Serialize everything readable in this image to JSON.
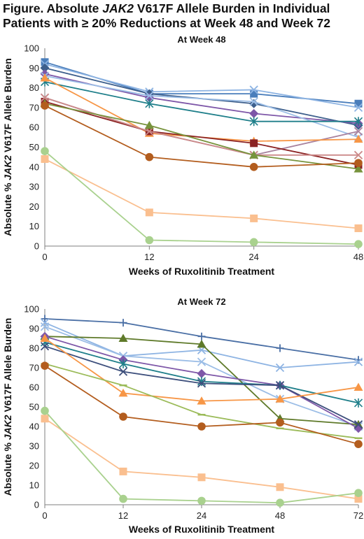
{
  "figure": {
    "title_prefix": "Figure. Absolute ",
    "title_gene": "JAK2",
    "title_rest": " V617F Allele Burden in Individual",
    "title_line2": "Patients with ≥ 20% Reductions at Week 48 and Week 72"
  },
  "chart_data": [
    {
      "type": "line",
      "title": "At Week 48",
      "xlabel": "Weeks of Ruxolitinib Treatment",
      "ylabel_prefix": "Absolute % ",
      "ylabel_gene": "JAK2",
      "ylabel_rest": " V617F Allele Burden",
      "x": [
        0,
        12,
        24,
        48
      ],
      "x_tick_labels": [
        "0",
        "12",
        "24",
        "48"
      ],
      "ylim": [
        0,
        100
      ],
      "y_ticks": [
        0,
        10,
        20,
        30,
        40,
        50,
        60,
        70,
        80,
        90,
        100
      ],
      "grid": false,
      "series": [
        {
          "color": "#4a7ebb",
          "marker": "square",
          "values": [
            93,
            77,
            77,
            72
          ]
        },
        {
          "color": "#8eb4e3",
          "marker": "x",
          "values": [
            92,
            78,
            79,
            70
          ]
        },
        {
          "color": "#3d5f8c",
          "marker": "diamond",
          "values": [
            90,
            77,
            72,
            61
          ]
        },
        {
          "color": "#7e57a8",
          "marker": "diamond",
          "values": [
            87,
            75,
            67,
            62
          ]
        },
        {
          "color": "#9bbde6",
          "marker": "x",
          "values": [
            86,
            76,
            73,
            55
          ]
        },
        {
          "color": "#1f7f8a",
          "marker": "star",
          "values": [
            83,
            72,
            63,
            63
          ]
        },
        {
          "color": "#a8829e",
          "marker": "x",
          "values": [
            75,
            58,
            46,
            58
          ]
        },
        {
          "color": "#f79646",
          "marker": "triangle",
          "values": [
            85,
            57,
            53,
            54
          ]
        },
        {
          "color": "#8b2323",
          "marker": "square",
          "values": [
            73,
            58,
            52,
            41
          ]
        },
        {
          "color": "#cc8a8a",
          "marker": "x",
          "values": [
            75,
            58,
            46,
            46
          ]
        },
        {
          "color": "#77933c",
          "marker": "triangle",
          "values": [
            72,
            61,
            46,
            39
          ]
        },
        {
          "color": "#b35d1e",
          "marker": "circle",
          "values": [
            71,
            45,
            40,
            42
          ]
        },
        {
          "color": "#fabf8f",
          "marker": "square",
          "values": [
            44,
            17,
            14,
            9
          ]
        },
        {
          "color": "#a9d18e",
          "marker": "circle",
          "values": [
            48,
            3,
            2,
            1
          ]
        }
      ]
    },
    {
      "type": "line",
      "title": "At Week 72",
      "xlabel": "Weeks of Ruxolitinib Treatment",
      "ylabel_prefix": "Absolute % ",
      "ylabel_gene": "JAK2",
      "ylabel_rest": " V617F Allele Burden",
      "x": [
        0,
        12,
        24,
        48,
        72
      ],
      "x_tick_labels": [
        "0",
        "12",
        "24",
        "48",
        "72"
      ],
      "ylim": [
        0,
        100
      ],
      "y_ticks": [
        0,
        10,
        20,
        30,
        40,
        50,
        60,
        70,
        80,
        90,
        100
      ],
      "grid": false,
      "series": [
        {
          "color": "#4a6fa5",
          "marker": "plus",
          "values": [
            95,
            93,
            86,
            80,
            74
          ]
        },
        {
          "color": "#8eb4e3",
          "marker": "x",
          "values": [
            93,
            76,
            79,
            70,
            73
          ]
        },
        {
          "color": "#9bbde6",
          "marker": "x",
          "values": [
            91,
            76,
            73,
            54,
            40
          ]
        },
        {
          "color": "#5f7a2a",
          "marker": "triangle",
          "values": [
            86,
            85,
            82,
            44,
            41
          ]
        },
        {
          "color": "#7e57a8",
          "marker": "diamond",
          "values": [
            86,
            74,
            67,
            61,
            39
          ]
        },
        {
          "color": "#1f7f8a",
          "marker": "star",
          "values": [
            83,
            72,
            63,
            61,
            52
          ]
        },
        {
          "color": "#3d4f7c",
          "marker": "x",
          "values": [
            81,
            68,
            62,
            61,
            41
          ]
        },
        {
          "color": "#f79646",
          "marker": "triangle",
          "values": [
            85,
            57,
            53,
            54,
            60
          ]
        },
        {
          "color": "#9bbb59",
          "marker": "dash",
          "values": [
            72,
            61,
            46,
            39,
            34
          ]
        },
        {
          "color": "#b35d1e",
          "marker": "circle",
          "values": [
            71,
            45,
            40,
            42,
            31
          ]
        },
        {
          "color": "#fabf8f",
          "marker": "square",
          "values": [
            44,
            17,
            14,
            9,
            3
          ]
        },
        {
          "color": "#a9d18e",
          "marker": "circle",
          "values": [
            48,
            3,
            2,
            1,
            6
          ]
        }
      ]
    }
  ]
}
